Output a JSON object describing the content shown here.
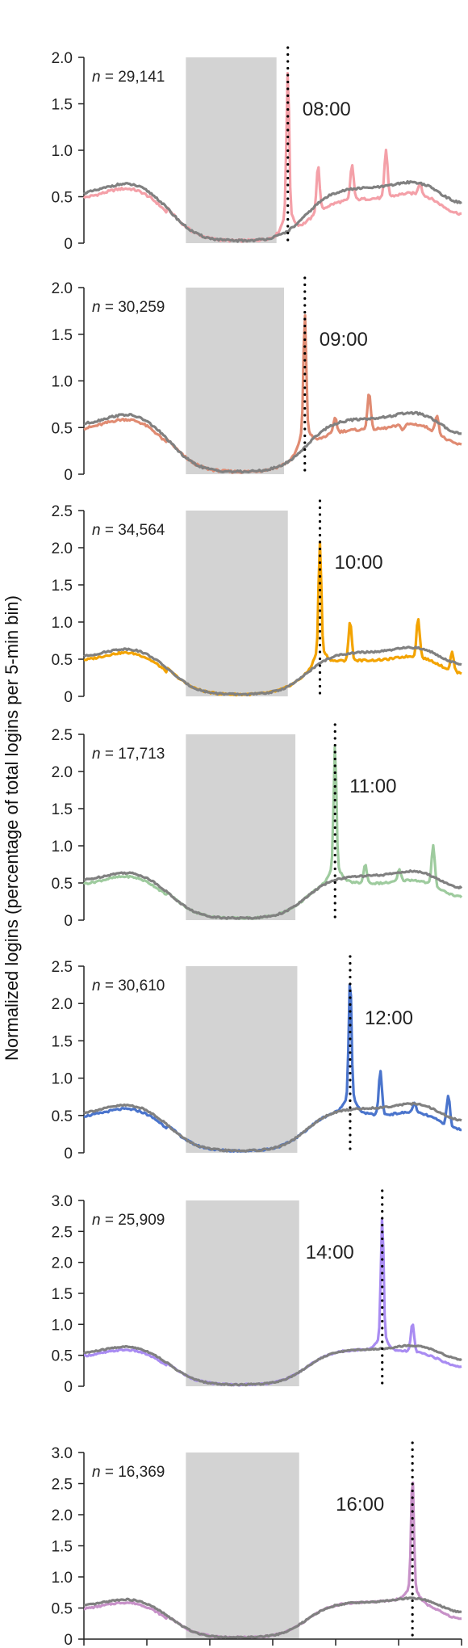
{
  "figure": {
    "ylabel": "Normalized logins (percentage of total logins per 5-min bin)"
  },
  "chart_data": [
    {
      "type": "line",
      "n_label": "n = 29,141",
      "event_label": "08:00",
      "event_x": 0.54,
      "color": "#f4a0a8",
      "baseline_color": "#808080",
      "ylim": [
        0,
        2.0
      ],
      "yticks": [
        0,
        0.5,
        1.0,
        1.5,
        2.0
      ],
      "ytick_labels": [
        "0",
        "0.5",
        "1.0",
        "1.5",
        "2.0"
      ],
      "shade": [
        0.27,
        0.51
      ],
      "peak": 1.85,
      "secondary_peaks": [
        1.05,
        0.93,
        1.05,
        0.68
      ],
      "grid": false
    },
    {
      "type": "line",
      "n_label": "n = 30,259",
      "event_label": "09:00",
      "event_x": 0.585,
      "color": "#e08b72",
      "baseline_color": "#808080",
      "ylim": [
        0,
        2.0
      ],
      "yticks": [
        0,
        0.5,
        1.0,
        1.5,
        2.0
      ],
      "ytick_labels": [
        "0",
        "0.5",
        "1.0",
        "1.5",
        "2.0"
      ],
      "shade": [
        0.27,
        0.53
      ],
      "peak": 1.73,
      "secondary_peaks": [
        0.72,
        0.95,
        0.5,
        0.75
      ],
      "grid": false
    },
    {
      "type": "line",
      "n_label": "n = 34,564",
      "event_label": "10:00",
      "event_x": 0.625,
      "color": "#f3a300",
      "baseline_color": "#808080",
      "ylim": [
        0,
        2.5
      ],
      "yticks": [
        0,
        0.5,
        1.0,
        1.5,
        2.0,
        2.5
      ],
      "ytick_labels": [
        "0",
        "0.5",
        "1.0",
        "1.5",
        "2.0",
        "2.5"
      ],
      "shade": [
        0.27,
        0.54
      ],
      "peak": 2.08,
      "secondary_peaks": [
        1.07,
        0.55,
        1.07,
        0.8
      ],
      "grid": false
    },
    {
      "type": "line",
      "n_label": "n = 17,713",
      "event_label": "11:00",
      "event_x": 0.665,
      "color": "#9ecb9e",
      "baseline_color": "#808080",
      "ylim": [
        0,
        2.5
      ],
      "yticks": [
        0,
        0.5,
        1.0,
        1.5,
        2.0,
        2.5
      ],
      "ytick_labels": [
        "0",
        "0.5",
        "1.0",
        "1.5",
        "2.0",
        "2.5"
      ],
      "shade": [
        0.27,
        0.56
      ],
      "peak": 2.35,
      "secondary_peaks": [
        0.8,
        0.7,
        1.08,
        1.03
      ],
      "grid": false
    },
    {
      "type": "line",
      "n_label": "n = 30,610",
      "event_label": "12:00",
      "event_x": 0.705,
      "color": "#4a74cc",
      "baseline_color": "#808080",
      "ylim": [
        0,
        2.5
      ],
      "yticks": [
        0,
        0.5,
        1.0,
        1.5,
        2.0,
        2.5
      ],
      "ytick_labels": [
        "0",
        "0.5",
        "1.0",
        "1.5",
        "2.0",
        "2.5"
      ],
      "shade": [
        0.27,
        0.565
      ],
      "peak": 2.38,
      "secondary_peaks": [
        1.13,
        0.68,
        0.95
      ],
      "grid": false
    },
    {
      "type": "line",
      "n_label": "n = 25,909",
      "event_label": "14:00",
      "event_x": 0.79,
      "color": "#a98cf2",
      "baseline_color": "#808080",
      "ylim": [
        0,
        3.0
      ],
      "yticks": [
        0,
        0.5,
        1.0,
        1.5,
        2.0,
        2.5,
        3.0
      ],
      "ytick_labels": [
        "0",
        "0.5",
        "1.0",
        "1.5",
        "2.0",
        "2.5",
        "3.0"
      ],
      "shade": [
        0.27,
        0.57
      ],
      "peak": 2.75,
      "secondary_peaks": [
        1.0
      ],
      "grid": false
    },
    {
      "type": "line",
      "n_label": "n = 16,369",
      "event_label": "16:00",
      "event_x": 0.87,
      "color": "#c791c8",
      "baseline_color": "#808080",
      "ylim": [
        0,
        3.0
      ],
      "yticks": [
        0,
        0.5,
        1.0,
        1.5,
        2.0,
        2.5,
        3.0
      ],
      "ytick_labels": [
        "0",
        "0.5",
        "1.0",
        "1.5",
        "2.0",
        "2.5",
        "3.0"
      ],
      "shade": [
        0.27,
        0.57
      ],
      "peak": 2.65,
      "secondary_peaks": [],
      "grid": false
    }
  ]
}
